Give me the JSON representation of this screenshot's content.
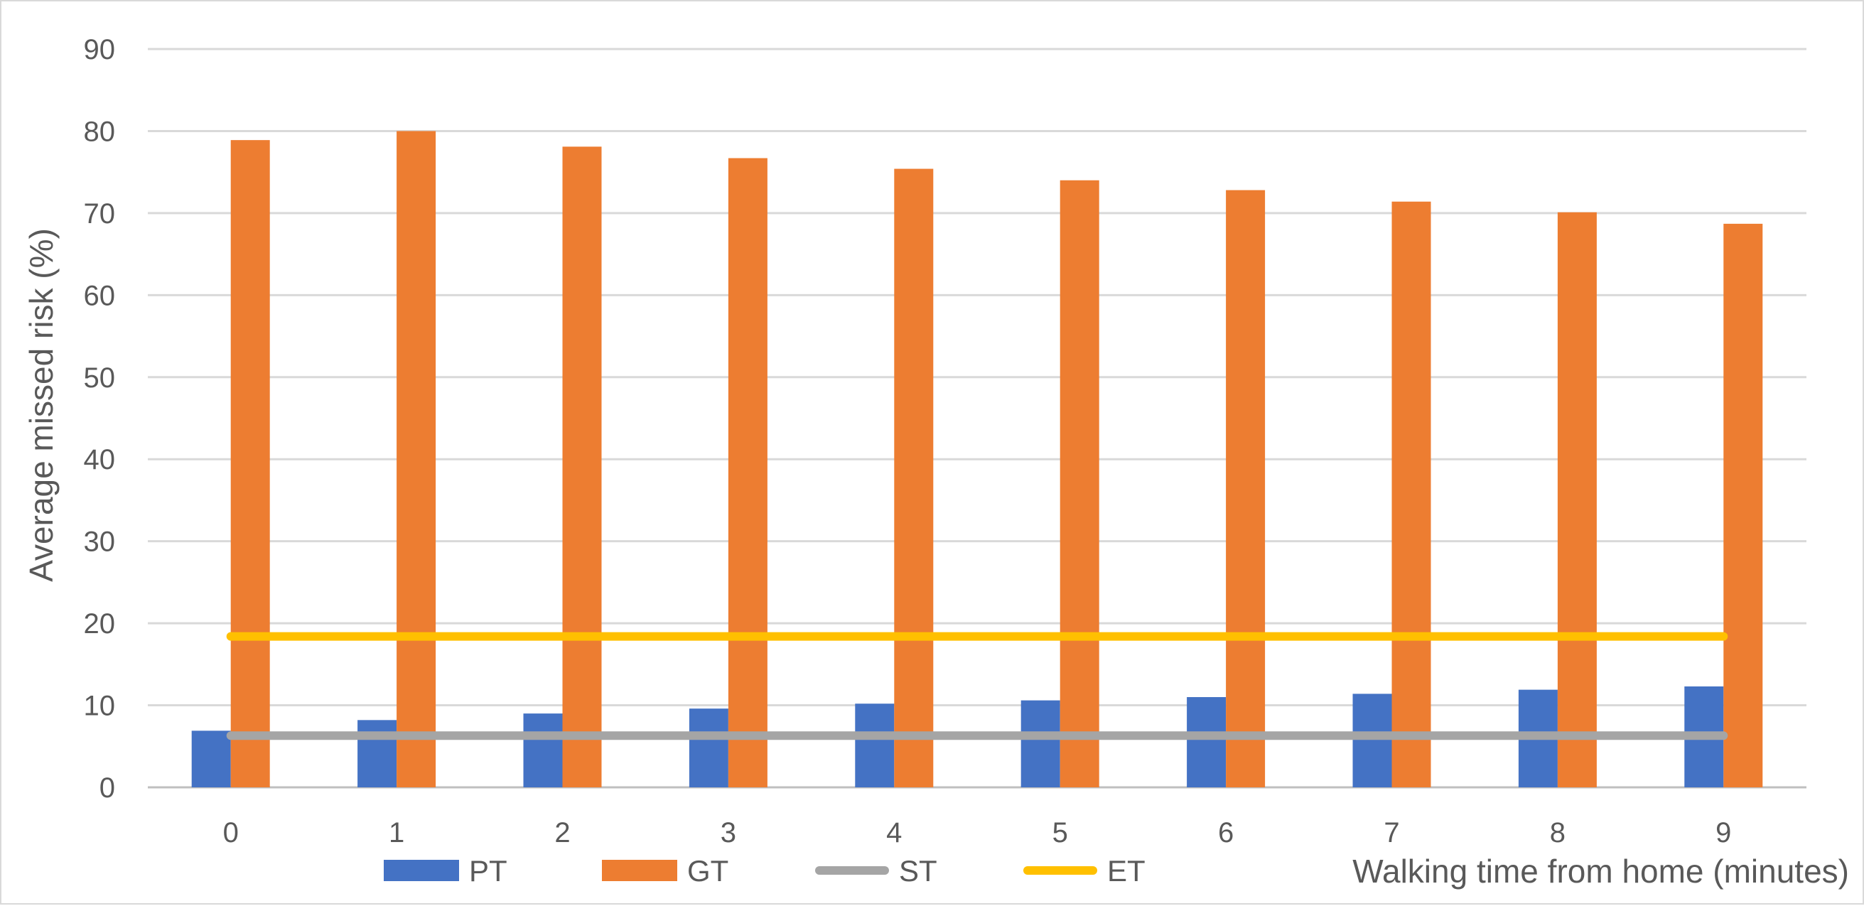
{
  "chart_data": {
    "type": "bar",
    "title": "",
    "xlabel": "Walking time from home (minutes)",
    "ylabel": "Average missed risk (%)",
    "categories": [
      "0",
      "1",
      "2",
      "3",
      "4",
      "5",
      "6",
      "7",
      "8",
      "9"
    ],
    "ylim": [
      0,
      90
    ],
    "yticks": [
      0,
      10,
      20,
      30,
      40,
      50,
      60,
      70,
      80,
      90
    ],
    "grid": true,
    "legend_position": "bottom",
    "series": [
      {
        "name": "PT",
        "kind": "bar",
        "color": "#4472C4",
        "values": [
          6.9,
          8.2,
          9.0,
          9.6,
          10.2,
          10.6,
          11.0,
          11.4,
          11.9,
          12.3
        ]
      },
      {
        "name": "GT",
        "kind": "bar",
        "color": "#ED7D31",
        "values": [
          78.9,
          80.0,
          78.1,
          76.7,
          75.4,
          74.0,
          72.8,
          71.4,
          70.1,
          68.7
        ]
      },
      {
        "name": "ST",
        "kind": "line",
        "color": "#A5A5A5",
        "values": [
          6.3,
          6.3,
          6.3,
          6.3,
          6.3,
          6.3,
          6.3,
          6.3,
          6.3,
          6.3
        ]
      },
      {
        "name": "ET",
        "kind": "line",
        "color": "#FFC000",
        "values": [
          18.4,
          18.4,
          18.4,
          18.4,
          18.4,
          18.4,
          18.4,
          18.4,
          18.4,
          18.4
        ]
      }
    ]
  }
}
